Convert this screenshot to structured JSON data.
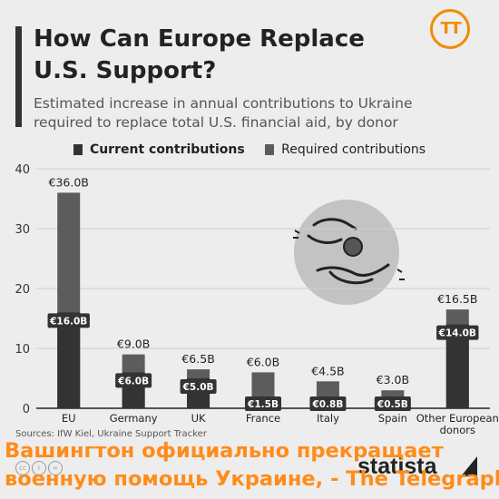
{
  "header": {
    "title": "How Can Europe Replace U.S. Support?",
    "subtitle": "Estimated increase in annual contributions to Ukraine required to replace total U.S. financial aid, by donor",
    "logo_text": "TT"
  },
  "legend": {
    "current": "Current contributions",
    "required": "Required contributions"
  },
  "colors": {
    "current": "#333333",
    "required": "#5c5c5c",
    "accent": "#f08c00",
    "overlay_text": "#ff8c1a"
  },
  "chart_data": {
    "type": "bar",
    "stacked": "overlay",
    "categories": [
      "EU",
      "Germany",
      "UK",
      "France",
      "Italy",
      "Spain",
      "Other European donors"
    ],
    "series": [
      {
        "name": "Current contributions",
        "values": [
          16.0,
          6.0,
          5.0,
          1.5,
          0.8,
          0.5,
          14.0
        ]
      },
      {
        "name": "Required contributions",
        "values": [
          36.0,
          9.0,
          6.5,
          6.0,
          4.5,
          3.0,
          16.5
        ]
      }
    ],
    "current_labels": [
      "€16.0B",
      "€6.0B",
      "€5.0B",
      "€1.5B",
      "€0.8B",
      "€0.5B",
      "€14.0B"
    ],
    "required_labels": [
      "€36.0B",
      "€9.0B",
      "€6.5B",
      "€6.0B",
      "€4.5B",
      "€3.0B",
      "€16.5B"
    ],
    "yticks": [
      0,
      10,
      20,
      30,
      40
    ],
    "ylim": [
      0,
      40
    ],
    "grid": true,
    "legend_position": "top-center"
  },
  "footer": {
    "sources": "Sources: IfW Kiel, Ukraine Support Tracker",
    "brand": "statista",
    "cc_icons": [
      "cc",
      "i",
      "="
    ]
  },
  "overlay": {
    "line1": "Вашингтон официально прекращает",
    "line2": "военную помощь Украине, - The Telegraph"
  }
}
